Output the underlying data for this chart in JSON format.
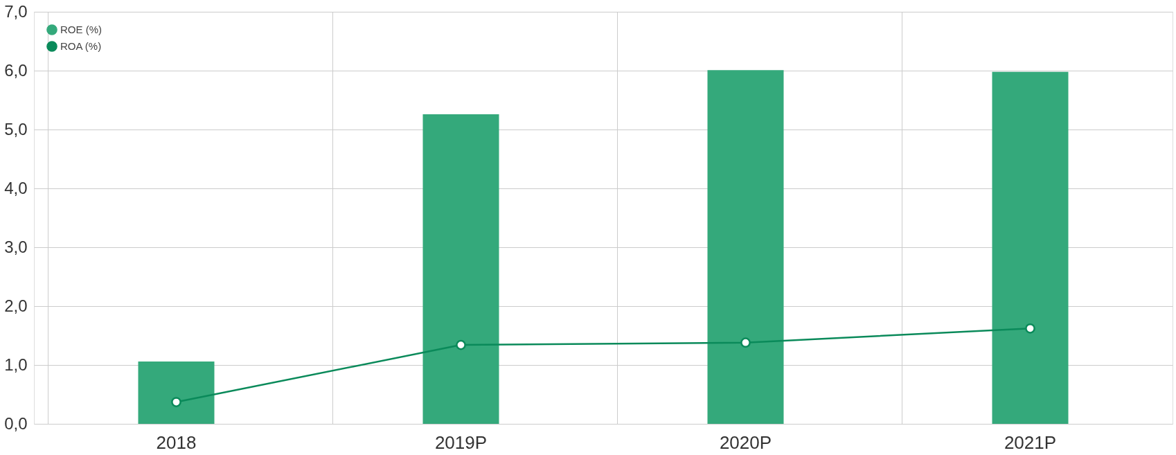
{
  "chart_data": {
    "type": "bar",
    "categories": [
      "2018",
      "2019P",
      "2020P",
      "2021P"
    ],
    "series": [
      {
        "name": "ROE (%)",
        "color": "#34a97b",
        "values": [
          1.06,
          5.26,
          6.01,
          5.98
        ]
      },
      {
        "name": "ROA (%)",
        "type": "line",
        "color": "#0a8a5a",
        "values": [
          0.37,
          1.34,
          1.38,
          1.62
        ]
      }
    ],
    "ylim": [
      0,
      7
    ],
    "yticks": [
      {
        "value": 0,
        "label": "0,0"
      },
      {
        "value": 1,
        "label": "1,0"
      },
      {
        "value": 2,
        "label": "2,0"
      },
      {
        "value": 3,
        "label": "3,0"
      },
      {
        "value": 4,
        "label": "4,0"
      },
      {
        "value": 5,
        "label": "5,0"
      },
      {
        "value": 6,
        "label": "6,0"
      },
      {
        "value": 7,
        "label": "7,0"
      }
    ],
    "grid": true,
    "legend": "top left",
    "marker": "circle"
  }
}
